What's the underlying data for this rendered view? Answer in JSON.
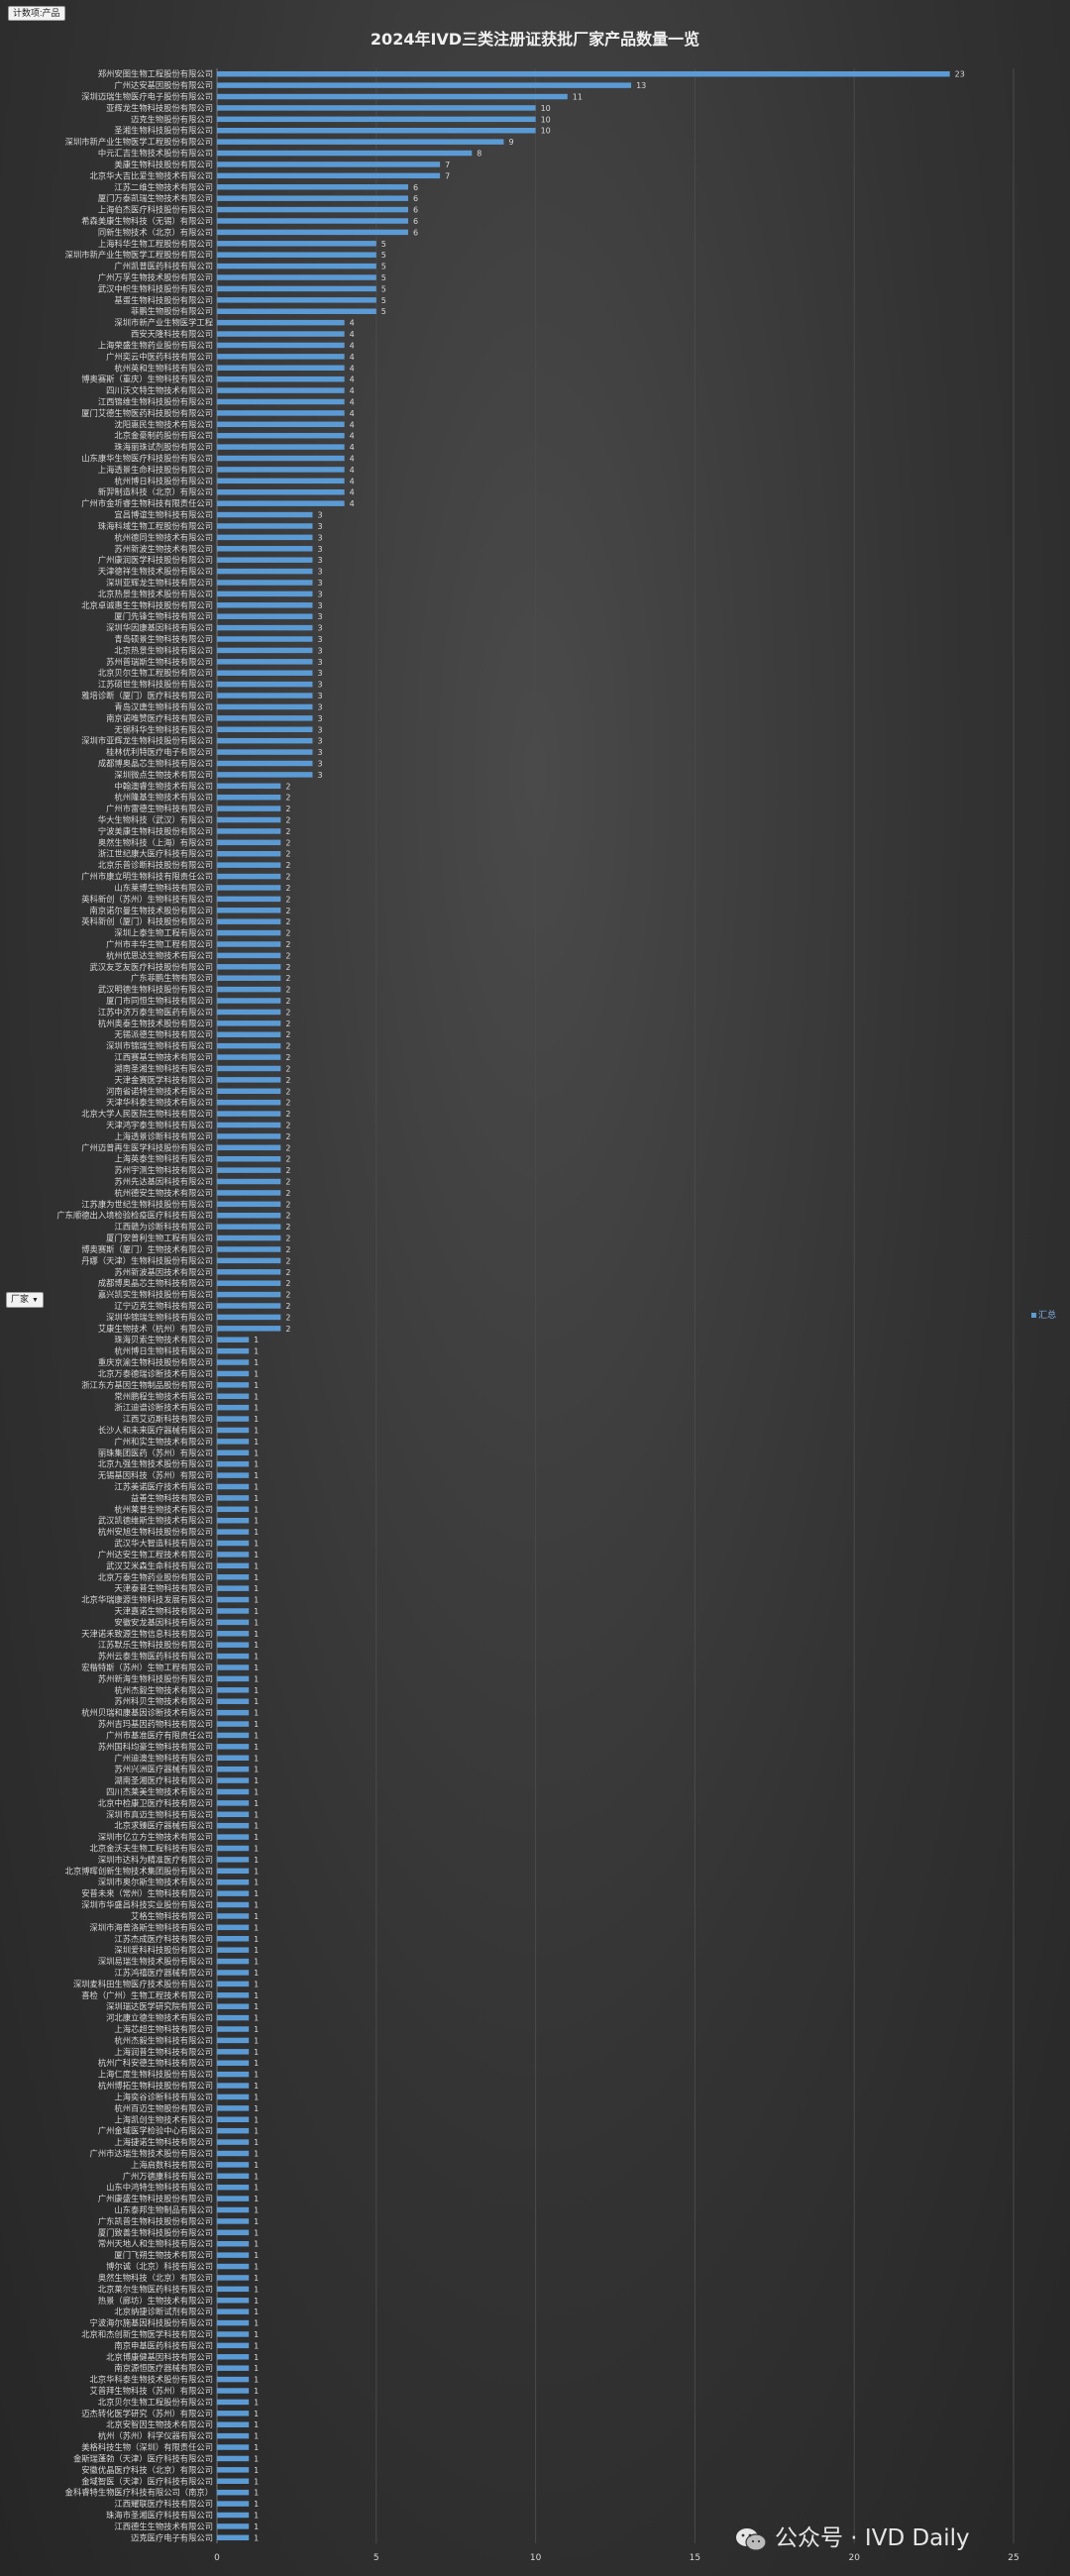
{
  "pivot": {
    "value_field_button": "计数项:产品",
    "axis_field_button": "厂家",
    "axis_field_dropdown": "▼"
  },
  "watermark": {
    "icon": "wechat-icon",
    "text": "公众号 · IVD Daily"
  },
  "colors": {
    "bar": "#5b9bd5",
    "background": "#333333",
    "gridline": "#4a4a4a",
    "label": "#d8d8d8"
  },
  "chart_data": {
    "type": "bar",
    "orientation": "horizontal",
    "title": "2024年IVD三类注册证获批厂家产品数量一览",
    "xlabel": "",
    "ylabel": "",
    "xlim": [
      0,
      25
    ],
    "x_ticks": [
      0,
      5,
      10,
      15,
      20,
      25
    ],
    "grid": true,
    "legend": {
      "position": "right",
      "entries": [
        "汇总"
      ]
    },
    "series": [
      {
        "name": "汇总"
      }
    ],
    "categories": [
      "郑州安图生物工程股份有限公司",
      "广州达安基因股份有限公司",
      "深圳迈瑞生物医疗电子股份有限公司",
      "亚辉龙生物科技股份有限公司",
      "迈克生物股份有限公司",
      "圣湘生物科技股份有限公司",
      "深圳市新产业生物医学工程股份有限公司",
      "中元汇吉生物技术股份有限公司",
      "美康生物科技股份有限公司",
      "北京华大吉比爱生物技术有限公司",
      "江苏二维生物技术有限公司",
      "厦门万泰凯瑞生物技术有限公司",
      "上海伯杰医疗科技股份有限公司",
      "希森美康生物科技（无锡）有限公司",
      "同新生物技术（北京）有限公司",
      "上海科华生物工程股份有限公司",
      "深圳市新产业生物医学工程股份有限公司",
      "广州凯普医药科技有限公司",
      "广州万孚生物技术股份有限公司",
      "武汉中帜生物科技股份有限公司",
      "基蛋生物科技股份有限公司",
      "菲鹏生物股份有限公司",
      "深圳市新产业生物医学工程",
      "西安天隆科技有限公司",
      "上海荣盛生物药业股份有限公司",
      "广州奕云中医药科技有限公司",
      "杭州英和生物科技有限公司",
      "博奥赛斯（重庆）生物科技有限公司",
      "四川沃文特生物技术有限公司",
      "江西锦维生物科技股份有限公司",
      "厦门艾德生物医药科技股份有限公司",
      "沈阳惠民生物技术有限公司",
      "北京金豪制药股份有限公司",
      "珠海丽珠试剂股份有限公司",
      "山东康华生物医疗科技股份有限公司",
      "上海透景生命科技股份有限公司",
      "杭州博日科技股份有限公司",
      "新羿制造科技（北京）有限公司",
      "广州市金圻睿生物科技有限责任公司",
      "宜昌博谊生物科技有限公司",
      "珠海科域生物工程股份有限公司",
      "杭州德同生物技术有限公司",
      "苏州新波生物技术有限公司",
      "广州康润医学科技股份有限公司",
      "天津德祥生物技术股份有限公司",
      "深圳亚辉龙生物科技有限公司",
      "北京热景生物技术股份有限公司",
      "北京卓诚惠生生物科技股份有限公司",
      "厦门先锋生物科技有限公司",
      "深圳华因康基因科技有限公司",
      "青岛硕景生物科技有限公司",
      "北京热景生物科技有限公司",
      "苏州普瑞斯生物科技有限公司",
      "北京贝尔生物工程股份有限公司",
      "江苏硕世生物科技股份有限公司",
      "雅培诊断（厦门）医疗科技有限公司",
      "青岛汉唐生物科技有限公司",
      "南京诺唯赞医疗科技有限公司",
      "无锡科华生物科技有限公司",
      "深圳市亚辉龙生物科技股份有限公司",
      "桂林优利特医疗电子有限公司",
      "成都博奥晶芯生物科技有限公司",
      "深圳微点生物技术有限公司",
      "中翰澳睿生物技术有限公司",
      "杭州隆基生物技术有限公司",
      "广州市雷德生物科技有限公司",
      "华大生物科技（武汉）有限公司",
      "宁波美康生物科技股份有限公司",
      "奥然生物科技（上海）有限公司",
      "浙江世纪康大医疗科技有限公司",
      "北京乐普诊断科技股份有限公司",
      "广州市康立明生物科技有限责任公司",
      "山东莱博生物科技有限公司",
      "英科新创（苏州）生物科技有限公司",
      "南京诺尔曼生物技术股份有限公司",
      "英科新创（厦门）科技股份有限公司",
      "深圳上泰生物工程有限公司",
      "广州市丰华生物工程有限公司",
      "杭州优思达生物技术有限公司",
      "武汉友芝友医疗科技股份有限公司",
      "广东菲鹏生物有限公司",
      "武汉明德生物科技股份有限公司",
      "厦门市同恒生物科技有限公司",
      "江苏中济万泰生物医药有限公司",
      "杭州奥泰生物技术股份有限公司",
      "无锡派德生物科技有限公司",
      "深圳市锦瑞生物科技有限公司",
      "江西赛基生物技术有限公司",
      "湖南圣湘生物科技有限公司",
      "天津金赛医学科技有限公司",
      "河南省诺特生物技术有限公司",
      "天津华科泰生物技术有限公司",
      "北京大学人民医院生物科技有限公司",
      "天津鸿宇泰生物科技有限公司",
      "上海透景诊断科技有限公司",
      "广州迈普再生医学科技股份有限公司",
      "上海英泰生物科技有限公司",
      "苏州宇测生物科技有限公司",
      "苏州先达基因科技有限公司",
      "杭州德安生物技术有限公司",
      "江苏康为世纪生物科技股份有限公司",
      "广东顺德出入境检验检疫医疗科技有限公司",
      "江西赣为诊断科技有限公司",
      "厦门安普利生物工程有限公司",
      "博奥赛斯（厦门）生物技术有限公司",
      "丹娜（天津）生物科技股份有限公司",
      "苏州新波基因技术有限公司",
      "成都博奥晶芯生物科技有限公司",
      "嘉兴凯实生物科技股份有限公司",
      "辽宁迈克生物科技有限公司",
      "深圳华锦瑞生物科技有限公司",
      "艾康生物技术（杭州）有限公司",
      "珠海贝索生物技术有限公司",
      "杭州博日生物科技有限公司",
      "重庆京渝生物科技股份有限公司",
      "北京万泰德瑞诊断技术有限公司",
      "浙江东方基因生物制品股份有限公司",
      "常州鹏程生物技术有限公司",
      "浙江迪谱诊断技术有限公司",
      "江西艾迈斯科技有限公司",
      "长沙人和未来医疗器械有限公司",
      "广州和实生物技术有限公司",
      "丽珠集团医药（苏州）有限公司",
      "北京九强生物技术股份有限公司",
      "无锡基因科技（苏州）有限公司",
      "江苏美诺医疗技术有限公司",
      "益善生物科技有限公司",
      "杭州莱普生物技术有限公司",
      "武汉凯德维斯生物技术有限公司",
      "杭州安旭生物科技股份有限公司",
      "武汉华大智造科技有限公司",
      "广州达安生物工程技术有限公司",
      "武汉艾米森生命科技有限公司",
      "北京万泰生物药业股份有限公司",
      "天津泰普生物科技有限公司",
      "北京华瑞康源生物科技发展有限公司",
      "天津嘉诺生物科技有限公司",
      "安徽安龙基因科技有限公司",
      "天津诺禾致源生物信息科技有限公司",
      "江苏默乐生物科技股份有限公司",
      "苏州云泰生物医药科技有限公司",
      "宏楷特斯（苏州）生物工程有限公司",
      "苏州新海生物科技股份有限公司",
      "杭州杰毅生物技术有限公司",
      "苏州科贝生物技术有限公司",
      "杭州贝瑞和康基因诊断技术有限公司",
      "苏州吉玛基因药物科技有限公司",
      "广州市基准医疗有限责任公司",
      "苏州国科均豪生物科技有限公司",
      "广州迪澳生物科技有限公司",
      "苏州兴洲医疗器械有限公司",
      "湖南圣湘医疗科技有限公司",
      "四川杰莱美生物技术有限公司",
      "北京中检康卫医疗科技有限公司",
      "深圳市真迈生物科技有限公司",
      "北京求臻医疗器械有限公司",
      "深圳市亿立方生物技术有限公司",
      "北京金沃夫生物工程科技有限公司",
      "深圳市达科为精准医疗有限公司",
      "北京博晖创新生物技术集团股份有限公司",
      "深圳市奥尔斯生物技术有限公司",
      "安普未来（常州）生物科技有限公司",
      "深圳市华盛昌科技实业股份有限公司",
      "艾格生物科技有限公司",
      "深圳市海普洛斯生物科技有限公司",
      "江苏杰成医疗科技有限公司",
      "深圳爱科科技股份有限公司",
      "深圳易瑞生物技术股份有限公司",
      "江苏鸿禧医疗器械有限公司",
      "深圳麦科田生物医疗技术股份有限公司",
      "喜检（广州）生物工程技术有限公司",
      "深圳瑞达医学研究院有限公司",
      "河北康立德生物技术有限公司",
      "上海芯超生物科技有限公司",
      "杭州杰毅生物科技有限公司",
      "上海润普生物科技有限公司",
      "杭州广科安德生物科技有限公司",
      "上海仁度生物科技股份有限公司",
      "杭州博拓生物科技股份有限公司",
      "上海奕谷诊断科技有限公司",
      "杭州百迈生物股份有限公司",
      "上海凯创生物技术有限公司",
      "广州金域医学检验中心有限公司",
      "上海捷诺生物科技有限公司",
      "广州市达瑞生物技术股份有限公司",
      "上海启数科技有限公司",
      "广州万德康科技有限公司",
      "山东中鸿特生物科技有限公司",
      "广州康盛生物科技股份有限公司",
      "山东泰邦生物制品有限公司",
      "广东凯普生物科技股份有限公司",
      "厦门致善生物科技股份有限公司",
      "常州天地人和生物科技有限公司",
      "厦门飞朔生物技术有限公司",
      "博尔诚（北京）科技有限公司",
      "奥然生物科技（北京）有限公司",
      "北京莱尔生物医药科技有限公司",
      "热景（廊坊）生物技术有限公司",
      "北京纳捷诊断试剂有限公司",
      "宁波海尔施基因科技股份有限公司",
      "北京和杰创新生物医学科技有限公司",
      "南京申基医药科技有限公司",
      "北京博康健基因科技有限公司",
      "南京源恒医疗器械有限公司",
      "北京华科泰生物技术股份有限公司",
      "艾普拜生物科技（苏州）有限公司",
      "北京贝尔生物工程股份有限公司",
      "迈杰转化医学研究（苏州）有限公司",
      "北京安智因生物技术有限公司",
      "杭州（苏州）科学仪器有限公司",
      "美格科技生物（深圳）有限责任公司",
      "金斯瑞蓬勃（天津）医疗科技有限公司",
      "安徽优晶医疗科技（北京）有限公司",
      "金域智医（天津）医疗科技有限公司",
      "金科睿特生物医疗科技有限公司（南京）",
      "江西耀联医疗科技有限公司",
      "珠海市圣湘医疗科技有限公司",
      "江西德生生物技术有限公司",
      "迈克医疗电子有限公司"
    ],
    "values": [
      23,
      13,
      11,
      10,
      10,
      10,
      9,
      8,
      7,
      7,
      6,
      6,
      6,
      6,
      6,
      5,
      5,
      5,
      5,
      5,
      5,
      5,
      4,
      4,
      4,
      4,
      4,
      4,
      4,
      4,
      4,
      4,
      4,
      4,
      4,
      4,
      4,
      4,
      4,
      3,
      3,
      3,
      3,
      3,
      3,
      3,
      3,
      3,
      3,
      3,
      3,
      3,
      3,
      3,
      3,
      3,
      3,
      3,
      3,
      3,
      3,
      3,
      3,
      2,
      2,
      2,
      2,
      2,
      2,
      2,
      2,
      2,
      2,
      2,
      2,
      2,
      2,
      2,
      2,
      2,
      2,
      2,
      2,
      2,
      2,
      2,
      2,
      2,
      2,
      2,
      2,
      2,
      2,
      2,
      2,
      2,
      2,
      2,
      2,
      2,
      2,
      2,
      2,
      2,
      2,
      2,
      2,
      2,
      2,
      2,
      2,
      2,
      1,
      1,
      1,
      1,
      1,
      1,
      1,
      1,
      1,
      1,
      1,
      1,
      1,
      1,
      1,
      1,
      1,
      1,
      1,
      1,
      1,
      1,
      1,
      1,
      1,
      1,
      1,
      1,
      1,
      1,
      1,
      1,
      1,
      1,
      1,
      1,
      1,
      1,
      1,
      1,
      1,
      1,
      1,
      1,
      1,
      1,
      1,
      1,
      1,
      1,
      1,
      1,
      1,
      1,
      1,
      1,
      1,
      1,
      1,
      1,
      1,
      1,
      1,
      1,
      1,
      1,
      1,
      1,
      1,
      1,
      1,
      1,
      1,
      1,
      1,
      1,
      1,
      1,
      1,
      1,
      1,
      1,
      1,
      1,
      1,
      1,
      1,
      1,
      1,
      1,
      1,
      1,
      1,
      1,
      1,
      1,
      1,
      1,
      1,
      1,
      1,
      1,
      1,
      1,
      1,
      1,
      1
    ]
  }
}
